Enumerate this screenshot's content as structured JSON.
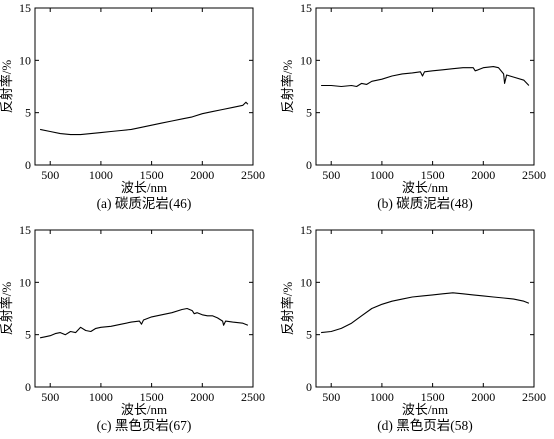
{
  "chart_data": [
    {
      "type": "line",
      "caption": "(a) 碳质泥岩(46)",
      "xlabel": "波长/nm",
      "ylabel": "反射率/%",
      "xlim": [
        350,
        2500
      ],
      "ylim": [
        0,
        15
      ],
      "xticks": [
        500,
        1000,
        1500,
        2000,
        2500
      ],
      "yticks": [
        0,
        5,
        10,
        15
      ],
      "series": [
        {
          "x": [
            400,
            500,
            600,
            700,
            800,
            900,
            1000,
            1100,
            1200,
            1300,
            1400,
            1500,
            1600,
            1700,
            1800,
            1900,
            2000,
            2100,
            2200,
            2300,
            2400,
            2430,
            2450
          ],
          "y": [
            3.4,
            3.2,
            3.0,
            2.9,
            2.9,
            3.0,
            3.1,
            3.2,
            3.3,
            3.4,
            3.6,
            3.8,
            4.0,
            4.2,
            4.4,
            4.6,
            4.9,
            5.1,
            5.3,
            5.5,
            5.7,
            6.0,
            5.8
          ]
        }
      ]
    },
    {
      "type": "line",
      "caption": "(b) 碳质泥岩(48)",
      "xlabel": "波长/nm",
      "ylabel": "反射率/%",
      "xlim": [
        350,
        2500
      ],
      "ylim": [
        0,
        15
      ],
      "xticks": [
        500,
        1000,
        1500,
        2000,
        2500
      ],
      "yticks": [
        0,
        5,
        10,
        15
      ],
      "series": [
        {
          "x": [
            400,
            500,
            600,
            700,
            750,
            800,
            850,
            900,
            1000,
            1100,
            1200,
            1300,
            1380,
            1400,
            1420,
            1500,
            1600,
            1700,
            1800,
            1900,
            1920,
            1950,
            2000,
            2100,
            2150,
            2200,
            2210,
            2230,
            2300,
            2400,
            2450
          ],
          "y": [
            7.6,
            7.6,
            7.5,
            7.6,
            7.5,
            7.8,
            7.7,
            8.0,
            8.2,
            8.5,
            8.7,
            8.8,
            8.9,
            8.5,
            8.9,
            9.0,
            9.1,
            9.2,
            9.3,
            9.3,
            9.0,
            9.1,
            9.3,
            9.4,
            9.3,
            8.7,
            7.8,
            8.6,
            8.4,
            8.1,
            7.6
          ]
        }
      ]
    },
    {
      "type": "line",
      "caption": "(c) 黑色页岩(67)",
      "xlabel": "波长/nm",
      "ylabel": "反射率/%",
      "xlim": [
        350,
        2500
      ],
      "ylim": [
        0,
        15
      ],
      "xticks": [
        500,
        1000,
        1500,
        2000,
        2500
      ],
      "yticks": [
        0,
        5,
        10,
        15
      ],
      "series": [
        {
          "x": [
            400,
            450,
            500,
            550,
            600,
            650,
            700,
            750,
            800,
            850,
            900,
            950,
            1000,
            1100,
            1200,
            1300,
            1380,
            1400,
            1420,
            1500,
            1600,
            1700,
            1800,
            1850,
            1900,
            1920,
            1950,
            2000,
            2050,
            2100,
            2150,
            2200,
            2210,
            2230,
            2300,
            2400,
            2450
          ],
          "y": [
            4.7,
            4.8,
            4.9,
            5.1,
            5.2,
            5.0,
            5.3,
            5.2,
            5.7,
            5.4,
            5.3,
            5.6,
            5.7,
            5.8,
            6.0,
            6.2,
            6.3,
            6.0,
            6.4,
            6.7,
            6.9,
            7.1,
            7.4,
            7.5,
            7.3,
            7.0,
            7.1,
            6.9,
            6.8,
            6.8,
            6.6,
            6.3,
            5.9,
            6.3,
            6.2,
            6.1,
            5.9
          ]
        }
      ]
    },
    {
      "type": "line",
      "caption": "(d) 黑色页岩(58)",
      "xlabel": "波长/nm",
      "ylabel": "反射率/%",
      "xlim": [
        350,
        2500
      ],
      "ylim": [
        0,
        15
      ],
      "xticks": [
        500,
        1000,
        1500,
        2000,
        2500
      ],
      "yticks": [
        0,
        5,
        10,
        15
      ],
      "series": [
        {
          "x": [
            400,
            500,
            600,
            700,
            800,
            900,
            1000,
            1100,
            1200,
            1300,
            1400,
            1500,
            1600,
            1700,
            1800,
            1900,
            2000,
            2100,
            2200,
            2300,
            2400,
            2450
          ],
          "y": [
            5.2,
            5.3,
            5.6,
            6.1,
            6.8,
            7.5,
            7.9,
            8.2,
            8.4,
            8.6,
            8.7,
            8.8,
            8.9,
            9.0,
            8.9,
            8.8,
            8.7,
            8.6,
            8.5,
            8.4,
            8.2,
            8.0
          ]
        }
      ]
    }
  ]
}
